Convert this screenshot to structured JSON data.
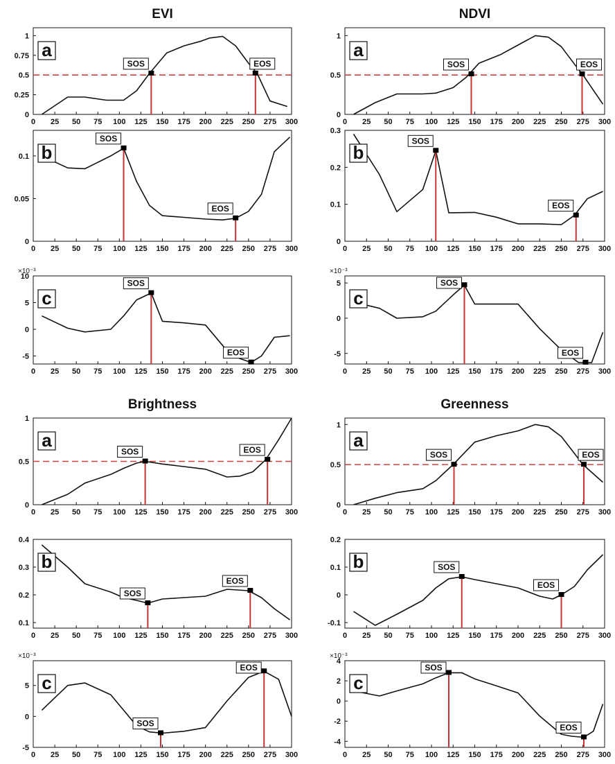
{
  "chart_data": [
    {
      "type": "line",
      "title": "EVI",
      "panel": "a",
      "x": [
        10,
        40,
        60,
        85,
        105,
        120,
        135,
        155,
        175,
        195,
        205,
        220,
        235,
        250,
        260,
        275,
        295
      ],
      "y": [
        0.0,
        0.22,
        0.22,
        0.18,
        0.18,
        0.3,
        0.52,
        0.78,
        0.87,
        0.93,
        0.97,
        0.99,
        0.87,
        0.65,
        0.52,
        0.17,
        0.1
      ],
      "xlim": [
        0,
        300
      ],
      "ylim": [
        0,
        1.1
      ],
      "xticks": [
        "0",
        "25",
        "50",
        "75",
        "100",
        "125",
        "150",
        "175",
        "200",
        "225",
        "250",
        "275",
        "300"
      ],
      "yticks": [
        {
          "v": 0,
          "label": "0"
        },
        {
          "v": 0.25,
          "label": "0.25"
        },
        {
          "v": 0.5,
          "label": "0.5"
        },
        {
          "v": 0.75,
          "label": "0.75"
        },
        {
          "v": 1,
          "label": "1"
        }
      ],
      "threshold": 0.5,
      "markers": [
        {
          "label": "SOS",
          "x": 137,
          "y": 0.52,
          "side": "left"
        },
        {
          "label": "EOS",
          "x": 258,
          "y": 0.52,
          "side": "right"
        }
      ]
    },
    {
      "type": "line",
      "title": "NDVI",
      "panel": "a",
      "x": [
        10,
        35,
        60,
        90,
        105,
        125,
        140,
        155,
        180,
        200,
        220,
        235,
        250,
        265,
        275,
        298
      ],
      "y": [
        0.0,
        0.15,
        0.26,
        0.26,
        0.27,
        0.34,
        0.47,
        0.65,
        0.76,
        0.88,
        1.0,
        0.98,
        0.86,
        0.64,
        0.5,
        0.13
      ],
      "xlim": [
        0,
        300
      ],
      "ylim": [
        0,
        1.1
      ],
      "xticks": [
        "0",
        "25",
        "50",
        "75",
        "100",
        "125",
        "150",
        "175",
        "200",
        "225",
        "250",
        "275",
        "300"
      ],
      "yticks": [
        {
          "v": 0,
          "label": "0"
        },
        {
          "v": 0.5,
          "label": "0.5"
        },
        {
          "v": 1,
          "label": "1"
        }
      ],
      "threshold": 0.5,
      "markers": [
        {
          "label": "SOS",
          "x": 146,
          "y": 0.51,
          "side": "left"
        },
        {
          "label": "EOS",
          "x": 274,
          "y": 0.51,
          "side": "right"
        }
      ]
    },
    {
      "type": "line",
      "title": "",
      "panel": "b",
      "x": [
        10,
        40,
        60,
        90,
        105,
        120,
        135,
        150,
        175,
        200,
        220,
        235,
        250,
        265,
        280,
        298
      ],
      "y": [
        0.1,
        0.086,
        0.085,
        0.1,
        0.109,
        0.07,
        0.042,
        0.03,
        0.028,
        0.026,
        0.025,
        0.027,
        0.035,
        0.055,
        0.105,
        0.122
      ],
      "xlim": [
        0,
        300
      ],
      "ylim": [
        0,
        0.13
      ],
      "xticks": [
        "0",
        "25",
        "50",
        "75",
        "100",
        "125",
        "150",
        "175",
        "200",
        "225",
        "250",
        "275",
        "300"
      ],
      "yticks": [
        {
          "v": 0,
          "label": "0"
        },
        {
          "v": 0.05,
          "label": "0.05"
        },
        {
          "v": 0.1,
          "label": "0.1"
        }
      ],
      "markers": [
        {
          "label": "SOS",
          "x": 105,
          "y": 0.109,
          "side": "left"
        },
        {
          "label": "EOS",
          "x": 235,
          "y": 0.027,
          "side": "left"
        }
      ]
    },
    {
      "type": "line",
      "title": "",
      "panel": "b",
      "x": [
        10,
        40,
        60,
        90,
        105,
        120,
        150,
        175,
        200,
        225,
        250,
        265,
        280,
        298
      ],
      "y": [
        0.29,
        0.18,
        0.08,
        0.14,
        0.245,
        0.077,
        0.078,
        0.065,
        0.047,
        0.047,
        0.045,
        0.07,
        0.115,
        0.135
      ],
      "xlim": [
        0,
        300
      ],
      "ylim": [
        0,
        0.3
      ],
      "xticks": [
        "0",
        "25",
        "50",
        "75",
        "100",
        "125",
        "150",
        "175",
        "200",
        "225",
        "250",
        "275",
        "300"
      ],
      "yticks": [
        {
          "v": 0,
          "label": "0"
        },
        {
          "v": 0.1,
          "label": "0.1"
        },
        {
          "v": 0.2,
          "label": "0.2"
        },
        {
          "v": 0.3,
          "label": "0.3"
        }
      ],
      "markers": [
        {
          "label": "SOS",
          "x": 105,
          "y": 0.245,
          "side": "left"
        },
        {
          "label": "EOS",
          "x": 267,
          "y": 0.07,
          "side": "left"
        }
      ]
    },
    {
      "type": "line",
      "title": "",
      "panel": "c",
      "exponent": "×10⁻³",
      "x": [
        10,
        40,
        60,
        90,
        105,
        120,
        137,
        150,
        175,
        200,
        225,
        240,
        253,
        265,
        280,
        298
      ],
      "y": [
        2.5,
        0.2,
        -0.5,
        0,
        2.5,
        5.5,
        6.8,
        1.5,
        1.2,
        0.8,
        -4.0,
        -5.5,
        -6.2,
        -5.0,
        -1.5,
        -1.2
      ],
      "xlim": [
        0,
        300
      ],
      "ylim": [
        -6.5,
        10
      ],
      "xticks": [
        "0",
        "25",
        "50",
        "75",
        "100",
        "125",
        "150",
        "175",
        "200",
        "225",
        "250",
        "275",
        "300"
      ],
      "yticks": [
        {
          "v": -5,
          "label": "-5"
        },
        {
          "v": 0,
          "label": "0"
        },
        {
          "v": 5,
          "label": "5"
        },
        {
          "v": 10,
          "label": "10"
        }
      ],
      "markers": [
        {
          "label": "SOS",
          "x": 137,
          "y": 6.8,
          "side": "left"
        },
        {
          "label": "EOS",
          "x": 253,
          "y": -6.2,
          "side": "left"
        }
      ]
    },
    {
      "type": "line",
      "title": "",
      "panel": "c",
      "exponent": "×10⁻³",
      "x": [
        10,
        40,
        60,
        90,
        105,
        125,
        138,
        150,
        175,
        200,
        225,
        250,
        270,
        285,
        298
      ],
      "y": [
        2.3,
        1.4,
        0,
        0.2,
        1.0,
        3.3,
        4.7,
        2.0,
        2.0,
        2.0,
        -1.5,
        -4.5,
        -6.3,
        -6.3,
        -2.0
      ],
      "xlim": [
        0,
        300
      ],
      "ylim": [
        -6.5,
        6
      ],
      "xticks": [
        "0",
        "25",
        "50",
        "75",
        "100",
        "125",
        "150",
        "175",
        "200",
        "225",
        "250",
        "275",
        "300"
      ],
      "yticks": [
        {
          "v": -5,
          "label": "-5"
        },
        {
          "v": 0,
          "label": "0"
        },
        {
          "v": 5,
          "label": "5"
        }
      ],
      "markers": [
        {
          "label": "SOS",
          "x": 138,
          "y": 4.7,
          "side": "left"
        },
        {
          "label": "EOS",
          "x": 278,
          "y": -6.3,
          "side": "left"
        }
      ]
    },
    {
      "type": "line",
      "title": "Brightness",
      "panel": "a",
      "x": [
        10,
        40,
        60,
        90,
        105,
        120,
        130,
        150,
        175,
        200,
        225,
        240,
        255,
        270,
        285,
        300
      ],
      "y": [
        0.0,
        0.12,
        0.25,
        0.35,
        0.42,
        0.48,
        0.5,
        0.47,
        0.44,
        0.41,
        0.32,
        0.33,
        0.38,
        0.52,
        0.75,
        1.0
      ],
      "xlim": [
        0,
        300
      ],
      "ylim": [
        0,
        1.0
      ],
      "xticks": [
        "0",
        "25",
        "50",
        "75",
        "100",
        "125",
        "150",
        "175",
        "200",
        "225",
        "250",
        "275",
        "300"
      ],
      "yticks": [
        {
          "v": 0,
          "label": "0"
        },
        {
          "v": 0.5,
          "label": "0.5"
        },
        {
          "v": 1,
          "label": "1"
        }
      ],
      "threshold": 0.5,
      "markers": [
        {
          "label": "SOS",
          "x": 130,
          "y": 0.5,
          "side": "left"
        },
        {
          "label": "EOS",
          "x": 272,
          "y": 0.52,
          "side": "left"
        }
      ]
    },
    {
      "type": "line",
      "title": "Greenness",
      "panel": "a",
      "x": [
        10,
        35,
        60,
        90,
        105,
        125,
        150,
        175,
        200,
        220,
        235,
        250,
        275,
        298
      ],
      "y": [
        0.0,
        0.08,
        0.15,
        0.2,
        0.3,
        0.5,
        0.78,
        0.86,
        0.92,
        1.0,
        0.97,
        0.85,
        0.5,
        0.28
      ],
      "xlim": [
        0,
        300
      ],
      "ylim": [
        0,
        1.08
      ],
      "xticks": [
        "0",
        "25",
        "50",
        "75",
        "100",
        "125",
        "150",
        "175",
        "200",
        "225",
        "250",
        "275",
        "300"
      ],
      "yticks": [
        {
          "v": 0,
          "label": "0"
        },
        {
          "v": 0.5,
          "label": "0.5"
        },
        {
          "v": 1,
          "label": "1"
        }
      ],
      "threshold": 0.5,
      "markers": [
        {
          "label": "SOS",
          "x": 126,
          "y": 0.5,
          "side": "left"
        },
        {
          "label": "EOS",
          "x": 276,
          "y": 0.5,
          "side": "right"
        }
      ]
    },
    {
      "type": "line",
      "title": "",
      "panel": "b",
      "x": [
        10,
        40,
        60,
        90,
        105,
        120,
        133,
        150,
        175,
        200,
        225,
        250,
        265,
        280,
        298
      ],
      "y": [
        0.38,
        0.3,
        0.24,
        0.21,
        0.19,
        0.18,
        0.17,
        0.185,
        0.19,
        0.195,
        0.22,
        0.215,
        0.19,
        0.15,
        0.11
      ],
      "xlim": [
        0,
        300
      ],
      "ylim": [
        0.08,
        0.4
      ],
      "xticks": [
        "0",
        "25",
        "50",
        "75",
        "100",
        "125",
        "150",
        "175",
        "200",
        "225",
        "250",
        "275",
        "300"
      ],
      "yticks": [
        {
          "v": 0.1,
          "label": "0.1"
        },
        {
          "v": 0.2,
          "label": "0.2"
        },
        {
          "v": 0.3,
          "label": "0.3"
        },
        {
          "v": 0.4,
          "label": "0.4"
        }
      ],
      "markers": [
        {
          "label": "SOS",
          "x": 133,
          "y": 0.17,
          "side": "left"
        },
        {
          "label": "EOS",
          "x": 252,
          "y": 0.215,
          "side": "left"
        }
      ]
    },
    {
      "type": "line",
      "title": "",
      "panel": "b",
      "x": [
        10,
        35,
        60,
        90,
        105,
        120,
        135,
        150,
        175,
        200,
        225,
        240,
        250,
        265,
        280,
        298
      ],
      "y": [
        -0.06,
        -0.11,
        -0.07,
        -0.02,
        0.025,
        0.058,
        0.065,
        0.055,
        0.04,
        0.025,
        -0.005,
        -0.015,
        0.0,
        0.03,
        0.09,
        0.145
      ],
      "xlim": [
        0,
        300
      ],
      "ylim": [
        -0.12,
        0.2
      ],
      "xticks": [
        "0",
        "25",
        "50",
        "75",
        "100",
        "125",
        "150",
        "175",
        "200",
        "225",
        "250",
        "275",
        "300"
      ],
      "yticks": [
        {
          "v": -0.1,
          "label": "-0.1"
        },
        {
          "v": 0,
          "label": "0"
        },
        {
          "v": 0.1,
          "label": "0.1"
        },
        {
          "v": 0.2,
          "label": "0.2"
        }
      ],
      "markers": [
        {
          "label": "SOS",
          "x": 135,
          "y": 0.065,
          "side": "left"
        },
        {
          "label": "EOS",
          "x": 250,
          "y": 0.0,
          "side": "left"
        }
      ]
    },
    {
      "type": "line",
      "title": "",
      "panel": "c",
      "exponent": "×10⁻³",
      "x": [
        10,
        40,
        60,
        90,
        105,
        120,
        135,
        150,
        175,
        200,
        225,
        250,
        268,
        285,
        300
      ],
      "y": [
        1.0,
        5.0,
        5.4,
        3.5,
        1.0,
        -1.5,
        -2.5,
        -2.7,
        -2.4,
        -1.8,
        2.5,
        6.3,
        7.3,
        6.0,
        0.0
      ],
      "xlim": [
        0,
        300
      ],
      "ylim": [
        -5,
        9
      ],
      "xticks": [
        "0",
        "25",
        "50",
        "75",
        "100",
        "125",
        "150",
        "175",
        "200",
        "225",
        "250",
        "275",
        "300"
      ],
      "yticks": [
        {
          "v": -5,
          "label": "-5"
        },
        {
          "v": 0,
          "label": "0"
        },
        {
          "v": 5,
          "label": "5"
        }
      ],
      "markers": [
        {
          "label": "SOS",
          "x": 148,
          "y": -2.7,
          "side": "left"
        },
        {
          "label": "EOS",
          "x": 268,
          "y": 7.3,
          "side": "left"
        }
      ]
    },
    {
      "type": "line",
      "title": "",
      "panel": "c",
      "exponent": "×10⁻³",
      "x": [
        10,
        40,
        60,
        90,
        105,
        120,
        135,
        150,
        175,
        200,
        225,
        250,
        262,
        276,
        287,
        298
      ],
      "y": [
        1.0,
        0.5,
        1.0,
        1.7,
        2.3,
        2.8,
        2.8,
        2.2,
        1.5,
        0.8,
        -1.5,
        -3.3,
        -3.5,
        -3.6,
        -3.0,
        -0.3
      ],
      "xlim": [
        0,
        300
      ],
      "ylim": [
        -4.6,
        4
      ],
      "xticks": [
        "0",
        "25",
        "50",
        "75",
        "100",
        "125",
        "150",
        "175",
        "200",
        "225",
        "250",
        "275",
        "300"
      ],
      "yticks": [
        {
          "v": -4,
          "label": "-4"
        },
        {
          "v": -2,
          "label": "-2"
        },
        {
          "v": 0,
          "label": "0"
        },
        {
          "v": 2,
          "label": "2"
        },
        {
          "v": 4,
          "label": "4"
        }
      ],
      "markers": [
        {
          "label": "SOS",
          "x": 120,
          "y": 2.8,
          "side": "left"
        },
        {
          "label": "EOS",
          "x": 276,
          "y": -3.6,
          "side": "left"
        }
      ]
    }
  ],
  "colors": {
    "curve": "#111111",
    "threshold": "#d04040",
    "stem": "#c83232",
    "marker": "#000000"
  }
}
